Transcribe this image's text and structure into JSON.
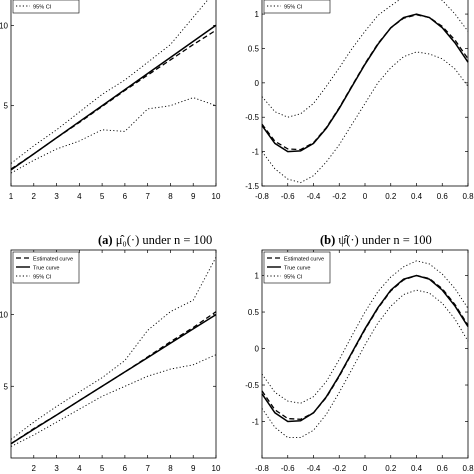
{
  "captions": {
    "a": {
      "tag": "(a)",
      "text": "μ̂₀(·) under n = 100"
    },
    "b": {
      "tag": "(b)",
      "text": "ψ̂(·) under n = 100"
    }
  },
  "legend_labels": {
    "estimated": "Estimated curve",
    "true": "True curve",
    "ci": "95% CI"
  },
  "colors": {
    "lines": "#000000",
    "background": "#ffffff"
  },
  "chart_data": [
    {
      "type": "line",
      "panel": "top-left",
      "legend_visible": [
        "95% CI"
      ],
      "x": [
        1,
        2,
        3,
        4,
        5,
        6,
        7,
        8,
        9,
        10
      ],
      "xticks": [
        "1",
        "2",
        "3",
        "4",
        "5",
        "6",
        "7",
        "8",
        "9",
        "10"
      ],
      "yticks": [
        "5",
        "10"
      ],
      "xlim": [
        1,
        10
      ],
      "ylim": [
        0,
        12.2
      ],
      "series": [
        {
          "name": "Estimated curve",
          "style": "dashed",
          "values": [
            1.05,
            2.0,
            3.0,
            3.95,
            4.95,
            5.95,
            6.9,
            7.85,
            8.8,
            9.7
          ]
        },
        {
          "name": "True curve",
          "style": "solid",
          "values": [
            1.0,
            2.0,
            3.0,
            4.0,
            5.0,
            6.0,
            7.0,
            8.0,
            9.0,
            10.0
          ]
        },
        {
          "name": "95% CI upper",
          "style": "dotted",
          "values": [
            1.4,
            2.5,
            3.5,
            4.6,
            5.7,
            6.6,
            7.7,
            8.8,
            10.5,
            12.2
          ]
        },
        {
          "name": "95% CI lower",
          "style": "dotted",
          "values": [
            0.8,
            1.6,
            2.3,
            2.8,
            3.5,
            3.4,
            4.8,
            5.0,
            5.5,
            5.0
          ]
        }
      ]
    },
    {
      "type": "line",
      "panel": "top-right",
      "legend_visible": [
        "95% CI"
      ],
      "x": [
        -0.8,
        -0.7,
        -0.6,
        -0.5,
        -0.4,
        -0.3,
        -0.2,
        -0.1,
        0.0,
        0.1,
        0.2,
        0.3,
        0.4,
        0.5,
        0.6,
        0.7,
        0.8
      ],
      "xticks": [
        "-0.8",
        "-0.6",
        "-0.4",
        "-0.2",
        "0",
        "0.2",
        "0.4",
        "0.6",
        "0.8"
      ],
      "yticks": [
        "-1.5",
        "-1",
        "-0.5",
        "0",
        "0.5",
        "1"
      ],
      "xlim": [
        -0.8,
        0.8
      ],
      "ylim": [
        -1.5,
        1.35
      ],
      "series": [
        {
          "name": "Estimated curve",
          "style": "dashed",
          "values": [
            -0.6,
            -0.85,
            -0.96,
            -0.97,
            -0.87,
            -0.65,
            -0.36,
            -0.04,
            0.28,
            0.57,
            0.8,
            0.94,
            0.99,
            0.95,
            0.82,
            0.62,
            0.35
          ]
        },
        {
          "name": "True curve",
          "style": "solid",
          "values": [
            -0.62,
            -0.88,
            -1.0,
            -0.99,
            -0.88,
            -0.66,
            -0.37,
            -0.05,
            0.27,
            0.56,
            0.8,
            0.95,
            1.0,
            0.95,
            0.8,
            0.58,
            0.3
          ]
        },
        {
          "name": "95% CI upper",
          "style": "dotted",
          "values": [
            -0.2,
            -0.42,
            -0.5,
            -0.45,
            -0.3,
            -0.05,
            0.22,
            0.5,
            0.75,
            0.98,
            1.12,
            1.25,
            1.32,
            1.3,
            1.2,
            1.0,
            0.75
          ]
        },
        {
          "name": "95% CI lower",
          "style": "dotted",
          "values": [
            -1.0,
            -1.25,
            -1.4,
            -1.45,
            -1.35,
            -1.15,
            -0.9,
            -0.6,
            -0.3,
            0.0,
            0.22,
            0.38,
            0.45,
            0.42,
            0.35,
            0.2,
            -0.05
          ]
        }
      ]
    },
    {
      "type": "line",
      "panel": "bottom-left",
      "legend": [
        "Estimated curve",
        "True curve",
        "95% CI"
      ],
      "legend_position": "top-left",
      "x": [
        1,
        2,
        3,
        4,
        5,
        6,
        7,
        8,
        9,
        10
      ],
      "xticks": [
        "2",
        "3",
        "4",
        "5",
        "6",
        "7",
        "8",
        "9",
        "10"
      ],
      "yticks": [
        "5",
        "10"
      ],
      "xlim": [
        1,
        10
      ],
      "ylim": [
        0,
        14.5
      ],
      "series": [
        {
          "name": "Estimated curve",
          "style": "dashed",
          "values": [
            1.0,
            2.05,
            3.0,
            4.0,
            5.0,
            6.0,
            7.05,
            8.1,
            9.1,
            10.2
          ]
        },
        {
          "name": "True curve",
          "style": "solid",
          "values": [
            1.0,
            2.0,
            3.0,
            4.0,
            5.0,
            6.0,
            7.0,
            8.0,
            9.0,
            10.0
          ]
        },
        {
          "name": "95% CI upper",
          "style": "dotted",
          "values": [
            1.3,
            2.5,
            3.6,
            4.6,
            5.6,
            6.8,
            8.9,
            10.2,
            11.0,
            14.0
          ]
        },
        {
          "name": "95% CI lower",
          "style": "dotted",
          "values": [
            0.8,
            1.6,
            2.5,
            3.4,
            4.3,
            5.0,
            5.7,
            6.2,
            6.5,
            7.2
          ]
        }
      ]
    },
    {
      "type": "line",
      "panel": "bottom-right",
      "legend": [
        "Estimated curve",
        "True curve",
        "95% CI"
      ],
      "legend_position": "top-left",
      "x": [
        -0.8,
        -0.7,
        -0.6,
        -0.5,
        -0.4,
        -0.3,
        -0.2,
        -0.1,
        0.0,
        0.1,
        0.2,
        0.3,
        0.4,
        0.5,
        0.6,
        0.7,
        0.8
      ],
      "xticks": [
        "-0.8",
        "-0.6",
        "-0.4",
        "-0.2",
        "0",
        "0.2",
        "0.4",
        "0.6",
        "0.8"
      ],
      "yticks": [
        "-1",
        "-0.5",
        "0",
        "0.5",
        "1"
      ],
      "xlim": [
        -0.8,
        0.8
      ],
      "ylim": [
        -1.5,
        1.35
      ],
      "series": [
        {
          "name": "Estimated curve",
          "style": "dashed",
          "values": [
            -0.58,
            -0.84,
            -0.96,
            -0.97,
            -0.88,
            -0.67,
            -0.38,
            -0.06,
            0.26,
            0.55,
            0.79,
            0.94,
            1.0,
            0.96,
            0.82,
            0.6,
            0.32
          ]
        },
        {
          "name": "True curve",
          "style": "solid",
          "values": [
            -0.62,
            -0.88,
            -1.0,
            -0.99,
            -0.88,
            -0.66,
            -0.37,
            -0.05,
            0.27,
            0.56,
            0.8,
            0.95,
            1.0,
            0.95,
            0.8,
            0.58,
            0.3
          ]
        },
        {
          "name": "95% CI upper",
          "style": "dotted",
          "values": [
            -0.35,
            -0.6,
            -0.72,
            -0.75,
            -0.66,
            -0.45,
            -0.15,
            0.18,
            0.5,
            0.78,
            0.98,
            1.12,
            1.2,
            1.16,
            1.02,
            0.82,
            0.55
          ]
        },
        {
          "name": "95% CI lower",
          "style": "dotted",
          "values": [
            -0.82,
            -1.08,
            -1.22,
            -1.22,
            -1.12,
            -0.9,
            -0.6,
            -0.28,
            0.05,
            0.35,
            0.58,
            0.74,
            0.8,
            0.76,
            0.62,
            0.4,
            0.1
          ]
        }
      ]
    }
  ]
}
